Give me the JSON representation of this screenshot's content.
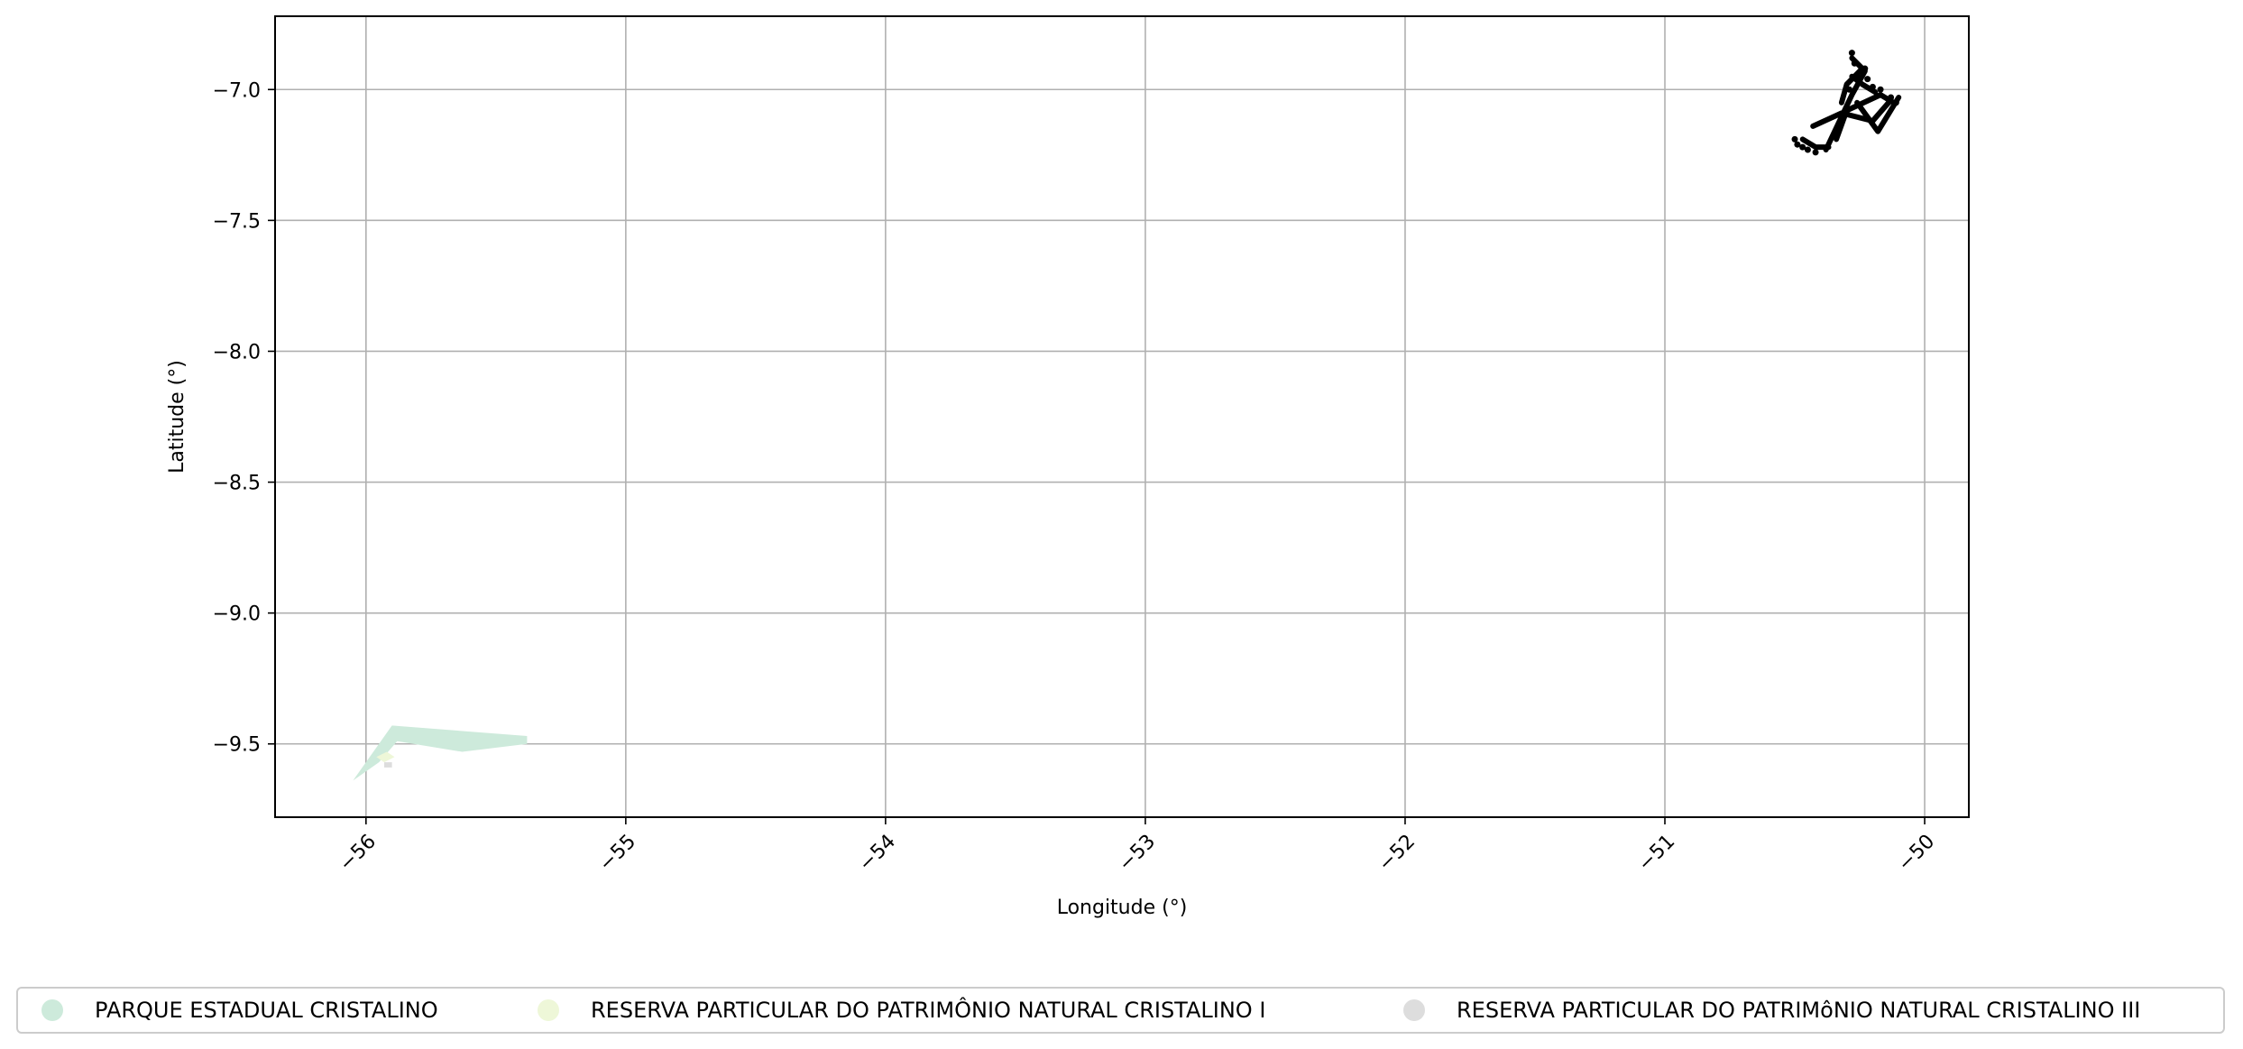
{
  "chart_data": {
    "type": "map",
    "title": "",
    "xlabel": "Longitude (°)",
    "ylabel": "Latitude (°)",
    "xlim": [
      -56.35,
      -49.83
    ],
    "ylim": [
      -9.78,
      -6.72
    ],
    "x_ticks": [
      -56,
      -55,
      -54,
      -53,
      -52,
      -51,
      -50
    ],
    "x_tick_labels": [
      "−56",
      "−55",
      "−54",
      "−53",
      "−52",
      "−51",
      "−50"
    ],
    "y_ticks": [
      -7.0,
      -7.5,
      -8.0,
      -8.5,
      -9.0,
      -9.5
    ],
    "y_tick_labels": [
      "−7.0",
      "−7.5",
      "−8.0",
      "−8.5",
      "−9.0",
      "−9.5"
    ],
    "x_tick_rotation_deg": 45,
    "grid": true,
    "legend_position": "bottom",
    "areas": [
      {
        "name": "PARQUE ESTADUAL CRISTALINO",
        "color": "#cdeadb",
        "polygons": [
          [
            [
              -56.05,
              -9.64
            ],
            [
              -55.9,
              -9.43
            ],
            [
              -55.38,
              -9.47
            ],
            [
              -55.38,
              -9.5
            ],
            [
              -55.63,
              -9.53
            ],
            [
              -55.88,
              -9.49
            ],
            [
              -55.95,
              -9.57
            ]
          ]
        ]
      },
      {
        "name": "RESERVA PARTICULAR DO PATRIMÔNIO NATURAL CRISTALINO I",
        "color": "#eef7d8",
        "polygons": [
          [
            [
              -55.96,
              -9.55
            ],
            [
              -55.92,
              -9.53
            ],
            [
              -55.89,
              -9.55
            ],
            [
              -55.93,
              -9.57
            ]
          ]
        ]
      },
      {
        "name": "RESERVA PARTICULAR DO PATRIMôNIO NATURAL CRISTALINO III",
        "color": "#dddddd",
        "polygons": [
          [
            [
              -55.93,
              -9.57
            ],
            [
              -55.9,
              -9.57
            ],
            [
              -55.9,
              -9.59
            ],
            [
              -55.93,
              -9.59
            ]
          ]
        ]
      }
    ],
    "tracks": {
      "color": "#000000",
      "lines": [
        [
          [
            -50.38,
            -7.23
          ],
          [
            -50.28,
            -7.02
          ],
          [
            -50.23,
            -6.93
          ],
          [
            -50.28,
            -6.88
          ]
        ],
        [
          [
            -50.43,
            -7.14
          ],
          [
            -50.32,
            -7.09
          ],
          [
            -50.2,
            -7.12
          ],
          [
            -50.13,
            -7.04
          ]
        ],
        [
          [
            -50.34,
            -7.19
          ],
          [
            -50.3,
            -7.08
          ],
          [
            -50.17,
            -7.02
          ],
          [
            -50.12,
            -7.05
          ]
        ],
        [
          [
            -50.26,
            -7.05
          ],
          [
            -50.18,
            -7.16
          ],
          [
            -50.1,
            -7.03
          ]
        ],
        [
          [
            -50.28,
            -6.95
          ],
          [
            -50.24,
            -6.98
          ],
          [
            -50.19,
            -7.01
          ]
        ],
        [
          [
            -50.32,
            -7.05
          ],
          [
            -50.3,
            -6.98
          ],
          [
            -50.24,
            -6.92
          ]
        ],
        [
          [
            -50.47,
            -7.19
          ],
          [
            -50.42,
            -7.22
          ],
          [
            -50.37,
            -7.22
          ]
        ]
      ],
      "points": [
        [
          -50.5,
          -7.19
        ],
        [
          -50.49,
          -7.21
        ],
        [
          -50.47,
          -7.22
        ],
        [
          -50.45,
          -7.23
        ],
        [
          -50.42,
          -7.24
        ],
        [
          -50.28,
          -6.86
        ],
        [
          -50.27,
          -6.9
        ],
        [
          -50.26,
          -6.95
        ],
        [
          -50.22,
          -6.96
        ],
        [
          -50.2,
          -6.99
        ],
        [
          -50.17,
          -7.0
        ],
        [
          -50.13,
          -7.03
        ],
        [
          -50.11,
          -7.05
        ],
        [
          -50.23,
          -6.92
        ],
        [
          -50.29,
          -7.0
        ]
      ]
    }
  }
}
